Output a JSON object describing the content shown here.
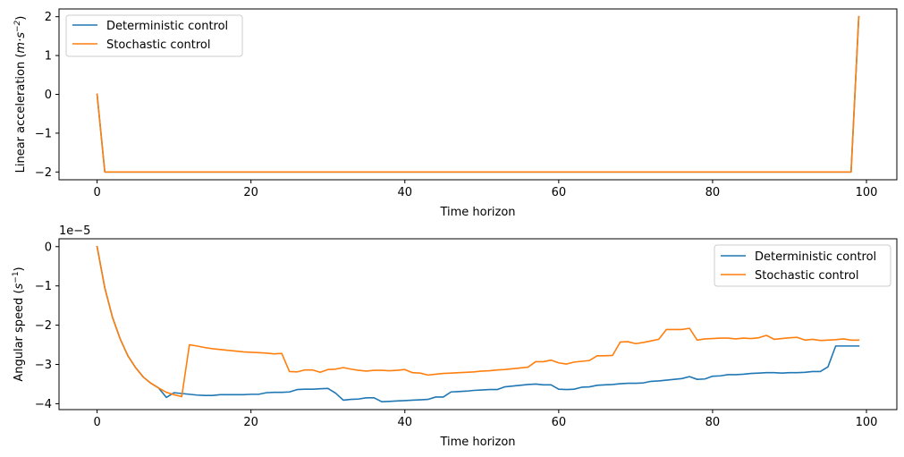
{
  "colors": {
    "deterministic": "#1f77b4",
    "stochastic": "#ff7f0e"
  },
  "chart_data": [
    {
      "type": "line",
      "xlabel": "Time horizon",
      "ylabel_text": "Linear acceleration (",
      "ylabel_math": "m·s",
      "ylabel_sup": "−2",
      "ylabel_close": ")",
      "xlim": [
        -4.95,
        103.95
      ],
      "ylim": [
        -2.2,
        2.2
      ],
      "xticks": [
        0,
        20,
        40,
        60,
        80,
        100
      ],
      "xtick_labels": [
        "0",
        "20",
        "40",
        "60",
        "80",
        "100"
      ],
      "yticks": [
        -2,
        -1,
        0,
        1,
        2
      ],
      "ytick_labels": [
        "−2",
        "−1",
        "0",
        "1",
        "2"
      ],
      "legend_loc": "upper left",
      "series": [
        {
          "name": "Deterministic control",
          "x": [
            0,
            1,
            98,
            99
          ],
          "y": [
            0,
            -2,
            -2,
            2
          ]
        },
        {
          "name": "Stochastic control",
          "x": [
            0,
            1,
            98,
            99
          ],
          "y": [
            0,
            -2,
            -2,
            2
          ]
        }
      ]
    },
    {
      "type": "line",
      "xlabel": "Time horizon",
      "ylabel_text": "Angular speed (",
      "ylabel_math": "s",
      "ylabel_sup": "−1",
      "ylabel_close": ")",
      "offset_text": "1e−5",
      "xlim": [
        -4.95,
        103.95
      ],
      "ylim": [
        -4.15,
        0.2
      ],
      "xticks": [
        0,
        20,
        40,
        60,
        80,
        100
      ],
      "xtick_labels": [
        "0",
        "20",
        "40",
        "60",
        "80",
        "100"
      ],
      "yticks": [
        -4,
        -3,
        -2,
        -1,
        0
      ],
      "ytick_labels": [
        "−4",
        "−3",
        "−2",
        "−1",
        "0"
      ],
      "legend_loc": "upper right",
      "series": [
        {
          "name": "Deterministic control",
          "y": [
            0,
            -1.05,
            -1.8,
            -2.35,
            -2.78,
            -3.08,
            -3.32,
            -3.48,
            -3.6,
            -3.84,
            -3.72,
            -3.74,
            -3.76,
            -3.78,
            -3.79,
            -3.79,
            -3.77,
            -3.77,
            -3.77,
            -3.77,
            -3.76,
            -3.76,
            -3.72,
            -3.71,
            -3.71,
            -3.7,
            -3.64,
            -3.63,
            -3.63,
            -3.62,
            -3.61,
            -3.73,
            -3.91,
            -3.89,
            -3.88,
            -3.85,
            -3.85,
            -3.95,
            -3.94,
            -3.93,
            -3.92,
            -3.91,
            -3.9,
            -3.89,
            -3.83,
            -3.83,
            -3.7,
            -3.69,
            -3.68,
            -3.66,
            -3.65,
            -3.64,
            -3.64,
            -3.57,
            -3.55,
            -3.53,
            -3.51,
            -3.5,
            -3.52,
            -3.52,
            -3.63,
            -3.64,
            -3.63,
            -3.58,
            -3.57,
            -3.53,
            -3.52,
            -3.51,
            -3.49,
            -3.48,
            -3.48,
            -3.47,
            -3.43,
            -3.42,
            -3.4,
            -3.38,
            -3.36,
            -3.31,
            -3.38,
            -3.37,
            -3.3,
            -3.29,
            -3.26,
            -3.26,
            -3.25,
            -3.23,
            -3.22,
            -3.21,
            -3.21,
            -3.22,
            -3.21,
            -3.21,
            -3.2,
            -3.18,
            -3.18,
            -3.06,
            -2.53,
            -2.53,
            -2.53,
            -2.53
          ]
        },
        {
          "name": "Stochastic control",
          "y": [
            0,
            -1.05,
            -1.8,
            -2.35,
            -2.78,
            -3.08,
            -3.32,
            -3.48,
            -3.6,
            -3.71,
            -3.77,
            -3.82,
            -2.5,
            -2.53,
            -2.57,
            -2.6,
            -2.62,
            -2.64,
            -2.66,
            -2.68,
            -2.69,
            -2.7,
            -2.71,
            -2.73,
            -2.72,
            -3.18,
            -3.19,
            -3.14,
            -3.14,
            -3.2,
            -3.13,
            -3.12,
            -3.08,
            -3.12,
            -3.15,
            -3.17,
            -3.15,
            -3.15,
            -3.16,
            -3.15,
            -3.13,
            -3.21,
            -3.22,
            -3.27,
            -3.25,
            -3.23,
            -3.22,
            -3.21,
            -3.2,
            -3.19,
            -3.17,
            -3.16,
            -3.14,
            -3.13,
            -3.11,
            -3.09,
            -3.07,
            -2.93,
            -2.93,
            -2.89,
            -2.96,
            -2.99,
            -2.94,
            -2.92,
            -2.9,
            -2.78,
            -2.78,
            -2.77,
            -2.43,
            -2.42,
            -2.47,
            -2.44,
            -2.4,
            -2.36,
            -2.11,
            -2.11,
            -2.11,
            -2.08,
            -2.38,
            -2.35,
            -2.34,
            -2.33,
            -2.33,
            -2.35,
            -2.33,
            -2.34,
            -2.32,
            -2.26,
            -2.36,
            -2.34,
            -2.32,
            -2.31,
            -2.38,
            -2.36,
            -2.39,
            -2.38,
            -2.37,
            -2.35,
            -2.38,
            -2.38
          ]
        }
      ]
    }
  ]
}
